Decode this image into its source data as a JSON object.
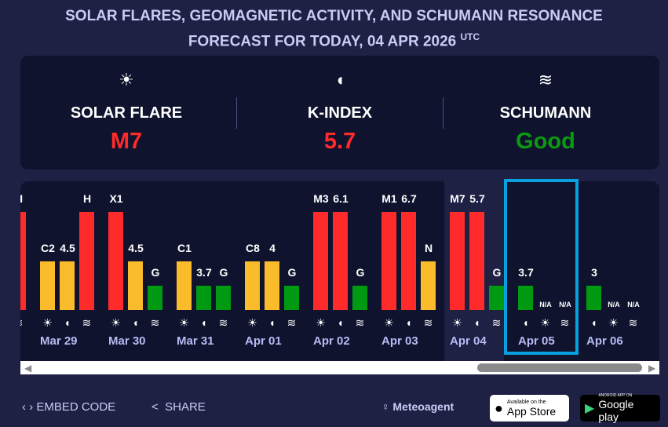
{
  "title": {
    "line1": "SOLAR FLARES, GEOMAGNETIC ACTIVITY, AND SCHUMANN RESONANCE",
    "line2": "FORECAST FOR TODAY, 04 APR 2026",
    "tz": "UTC"
  },
  "summary": [
    {
      "icon": "sun-icon",
      "label": "SOLAR FLARE",
      "value": "M7",
      "color": "#ff2a2a"
    },
    {
      "icon": "magnet-icon",
      "label": "K-INDEX",
      "value": "5.7",
      "color": "#ff2a2a"
    },
    {
      "icon": "waves-icon",
      "label": "SCHUMANN",
      "value": "Good",
      "color": "#0a9a10"
    }
  ],
  "colors": {
    "red": "#ff2a2a",
    "yellow": "#fbbc2c",
    "green": "#009a12",
    "highlight": "#0aa0e0"
  },
  "days": [
    {
      "date": "",
      "bars": [
        {
          "type": "sun",
          "label": "",
          "level": "none"
        },
        {
          "type": "magnet",
          "label": "",
          "level": "none"
        },
        {
          "type": "waves",
          "label": "H",
          "level": "red"
        }
      ]
    },
    {
      "date": "Mar 29",
      "bars": [
        {
          "type": "sun",
          "label": "C2",
          "level": "yellow"
        },
        {
          "type": "magnet",
          "label": "4.5",
          "level": "yellow"
        },
        {
          "type": "waves",
          "label": "H",
          "level": "red"
        }
      ]
    },
    {
      "date": "Mar 30",
      "bars": [
        {
          "type": "sun",
          "label": "X1",
          "level": "red"
        },
        {
          "type": "magnet",
          "label": "4.5",
          "level": "yellow"
        },
        {
          "type": "waves",
          "label": "G",
          "level": "green"
        }
      ]
    },
    {
      "date": "Mar 31",
      "bars": [
        {
          "type": "sun",
          "label": "C1",
          "level": "yellow"
        },
        {
          "type": "magnet",
          "label": "3.7",
          "level": "green"
        },
        {
          "type": "waves",
          "label": "G",
          "level": "green"
        }
      ]
    },
    {
      "date": "Apr 01",
      "bars": [
        {
          "type": "sun",
          "label": "C8",
          "level": "yellow"
        },
        {
          "type": "magnet",
          "label": "4",
          "level": "yellow"
        },
        {
          "type": "waves",
          "label": "G",
          "level": "green"
        }
      ]
    },
    {
      "date": "Apr 02",
      "bars": [
        {
          "type": "sun",
          "label": "M3",
          "level": "red"
        },
        {
          "type": "magnet",
          "label": "6.1",
          "level": "red"
        },
        {
          "type": "waves",
          "label": "G",
          "level": "green"
        }
      ]
    },
    {
      "date": "Apr 03",
      "bars": [
        {
          "type": "sun",
          "label": "M1",
          "level": "red"
        },
        {
          "type": "magnet",
          "label": "6.7",
          "level": "red"
        },
        {
          "type": "waves",
          "label": "N",
          "level": "yellow"
        }
      ]
    },
    {
      "date": "Apr 04",
      "today": true,
      "bars": [
        {
          "type": "sun",
          "label": "M7",
          "level": "red"
        },
        {
          "type": "magnet",
          "label": "5.7",
          "level": "red"
        },
        {
          "type": "waves",
          "label": "G",
          "level": "green"
        }
      ]
    },
    {
      "date": "Apr 05",
      "selected": true,
      "bars": [
        {
          "type": "magnet",
          "label": "3.7",
          "level": "green"
        },
        {
          "type": "sun",
          "label": "N/A",
          "level": "na"
        },
        {
          "type": "waves",
          "label": "N/A",
          "level": "na"
        }
      ]
    },
    {
      "date": "Apr 06",
      "bars": [
        {
          "type": "magnet",
          "label": "3",
          "level": "green"
        },
        {
          "type": "sun",
          "label": "N/A",
          "level": "na"
        },
        {
          "type": "waves",
          "label": "N/A",
          "level": "na"
        }
      ]
    }
  ],
  "footer": {
    "embed": "EMBED CODE",
    "share": "SHARE",
    "brand": "Meteoagent",
    "appstore_small": "Available on the",
    "appstore": "App Store",
    "gplay_small": "ANDROID APP ON",
    "gplay": "Google play"
  }
}
